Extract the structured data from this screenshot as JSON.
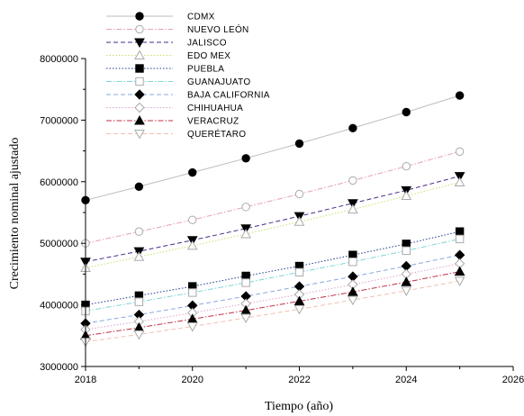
{
  "chart_data": {
    "type": "line",
    "xlabel": "Tiempo (año)",
    "ylabel": "Crecimiento nominal ajustado",
    "xlim": [
      2018,
      2026
    ],
    "ylim": [
      3000000,
      8000000
    ],
    "x_ticks": [
      "2018",
      "2020",
      "2022",
      "2024",
      "2026"
    ],
    "y_ticks": [
      "3000000",
      "4000000",
      "5000000",
      "6000000",
      "7000000",
      "8000000"
    ],
    "grid": false,
    "legend_position": "top-left",
    "x": [
      2018,
      2019,
      2020,
      2021,
      2022,
      2023,
      2024,
      2025
    ],
    "series": [
      {
        "name": "CDMX",
        "marker": "circle-filled",
        "line": "solid",
        "color": "#bdbdbd",
        "values": [
          5700000,
          5920000,
          6150000,
          6380000,
          6620000,
          6870000,
          7130000,
          7400000
        ]
      },
      {
        "name": "NUEVO LEÓN",
        "marker": "circle-open",
        "line": "dashdot",
        "color": "#e8a0b8",
        "values": [
          5000000,
          5190000,
          5380000,
          5590000,
          5800000,
          6020000,
          6250000,
          6490000
        ]
      },
      {
        "name": "JALISCO",
        "marker": "triangle-down-filled",
        "line": "dash",
        "color": "#4a2a8a",
        "values": [
          4700000,
          4870000,
          5050000,
          5240000,
          5440000,
          5650000,
          5860000,
          6090000
        ]
      },
      {
        "name": "EDO MEX",
        "marker": "triangle-up-open",
        "line": "dot",
        "color": "#c9e06a",
        "values": [
          4600000,
          4780000,
          4960000,
          5150000,
          5350000,
          5550000,
          5770000,
          5990000
        ]
      },
      {
        "name": "PUEBLA",
        "marker": "square-filled",
        "line": "dot",
        "color": "#1e3a8a",
        "values": [
          4000000,
          4150000,
          4300000,
          4470000,
          4630000,
          4810000,
          4990000,
          5190000
        ]
      },
      {
        "name": "GUANAJUATO",
        "marker": "square-open",
        "line": "dashdot",
        "color": "#7fd6d6",
        "values": [
          3900000,
          4050000,
          4200000,
          4360000,
          4530000,
          4700000,
          4880000,
          5070000
        ]
      },
      {
        "name": "BAJA CALIFORNIA",
        "marker": "diamond-filled",
        "line": "dash",
        "color": "#8aa8e0",
        "values": [
          3700000,
          3840000,
          3990000,
          4140000,
          4300000,
          4460000,
          4630000,
          4810000
        ]
      },
      {
        "name": "CHIHUAHUA",
        "marker": "diamond-open",
        "line": "dot",
        "color": "#e0a0d0",
        "values": [
          3600000,
          3730000,
          3870000,
          4020000,
          4170000,
          4330000,
          4500000,
          4670000
        ]
      },
      {
        "name": "VERACRUZ",
        "marker": "triangle-up-filled",
        "line": "dashdot",
        "color": "#c0304a",
        "values": [
          3500000,
          3630000,
          3770000,
          3910000,
          4060000,
          4210000,
          4370000,
          4540000
        ]
      },
      {
        "name": "QUERÉTARO",
        "marker": "triangle-down-open",
        "line": "dash",
        "color": "#f0c0b0",
        "values": [
          3400000,
          3520000,
          3650000,
          3790000,
          3930000,
          4080000,
          4230000,
          4390000
        ]
      }
    ]
  }
}
